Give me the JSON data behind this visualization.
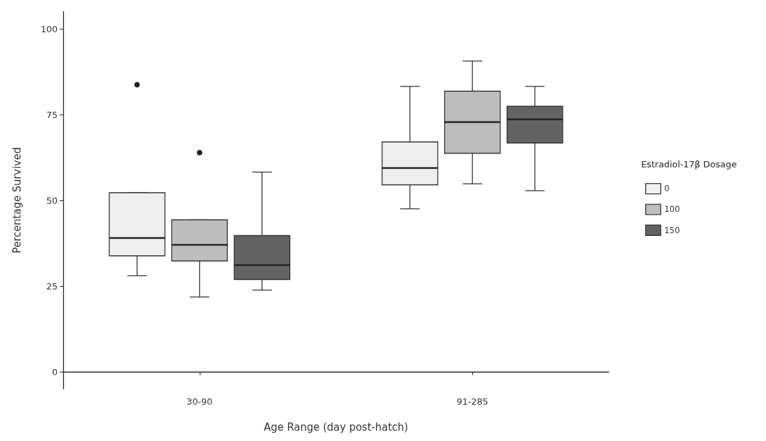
{
  "chart_data": {
    "type": "box",
    "xlabel": "Age Range (day post-hatch)",
    "ylabel": "Percentage Survived",
    "legend_title": "Estradiol-17β Dosage",
    "categories": [
      "30-90",
      "91-285"
    ],
    "series": [
      {
        "name": "0",
        "color": "#efefef",
        "boxes": [
          {
            "low": 28,
            "q1": 33.8,
            "median": 39,
            "q3": 52.2,
            "high": 52.2,
            "outliers": [
              83.7
            ]
          },
          {
            "low": 47.5,
            "q1": 54.5,
            "median": 59.4,
            "q3": 67,
            "high": 83.2
          }
        ]
      },
      {
        "name": "100",
        "color": "#bebebe",
        "boxes": [
          {
            "low": 21.8,
            "q1": 32.3,
            "median": 37,
            "q3": 44.3,
            "high": 44.3,
            "outliers": [
              63.9
            ]
          },
          {
            "low": 54.8,
            "q1": 63.7,
            "median": 72.8,
            "q3": 81.8,
            "high": 90.6
          }
        ]
      },
      {
        "name": "150",
        "color": "#636363",
        "boxes": [
          {
            "low": 23.8,
            "q1": 26.9,
            "median": 31.1,
            "q3": 39.7,
            "high": 58.2
          },
          {
            "low": 52.8,
            "q1": 66.7,
            "median": 73.6,
            "q3": 77.4,
            "high": 83.2
          }
        ]
      }
    ],
    "ylim": [
      -5,
      105
    ],
    "yticks": [
      0,
      25,
      50,
      75,
      100
    ],
    "legend": "right"
  }
}
